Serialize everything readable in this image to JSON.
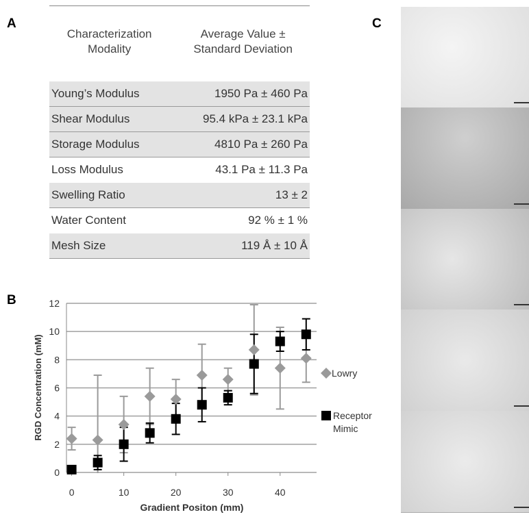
{
  "panel_labels": [
    "A",
    "B",
    "C"
  ],
  "table": {
    "header": [
      "Characterization Modality",
      "Average Value ± Standard Deviation"
    ],
    "rows": [
      [
        "Young’s Modulus",
        "1950 Pa ± 460 Pa"
      ],
      [
        "Shear Modulus",
        "95.4 kPa ± 23.1 kPa"
      ],
      [
        "Storage Modulus",
        "4810 Pa ± 260 Pa"
      ],
      [
        "Loss Modulus",
        "43.1 Pa ± 11.3 Pa"
      ],
      [
        "Swelling Ratio",
        "13 ± 2"
      ],
      [
        "Water Content",
        "92 % ± 1 %"
      ],
      [
        "Mesh Size",
        "119 Å ± 10 Å"
      ]
    ]
  },
  "chart_data": {
    "type": "errorbar-scatter",
    "x_label": "Gradient Positon (mm)",
    "y_label": "RGD Concentration (mM)",
    "xlim": [
      -1,
      47
    ],
    "xticks": [
      0,
      10,
      20,
      30,
      40
    ],
    "ylim": [
      0,
      12
    ],
    "yticks": [
      0,
      2,
      4,
      6,
      8,
      10,
      12
    ],
    "grid": true,
    "series": [
      {
        "name": "Lowry",
        "color": "#9a9a9a",
        "marker": "diamond",
        "x": [
          0,
          5,
          10,
          15,
          20,
          25,
          30,
          35,
          40,
          45
        ],
        "values": [
          2.4,
          2.3,
          3.4,
          5.4,
          5.2,
          6.9,
          6.6,
          8.7,
          7.4,
          8.1
        ],
        "errors": [
          0.8,
          4.6,
          2.0,
          2.0,
          1.4,
          2.2,
          0.8,
          3.2,
          2.9,
          1.7
        ]
      },
      {
        "name": "Receptor Mimic",
        "color": "#000000",
        "marker": "square",
        "x": [
          0,
          5,
          10,
          15,
          20,
          25,
          30,
          35,
          40,
          45
        ],
        "values": [
          0.2,
          0.7,
          2.0,
          2.8,
          3.8,
          4.8,
          5.3,
          7.7,
          9.3,
          9.8
        ],
        "errors": [
          0.2,
          0.5,
          1.2,
          0.7,
          1.1,
          1.2,
          0.5,
          2.1,
          0.7,
          1.1
        ]
      }
    ]
  }
}
